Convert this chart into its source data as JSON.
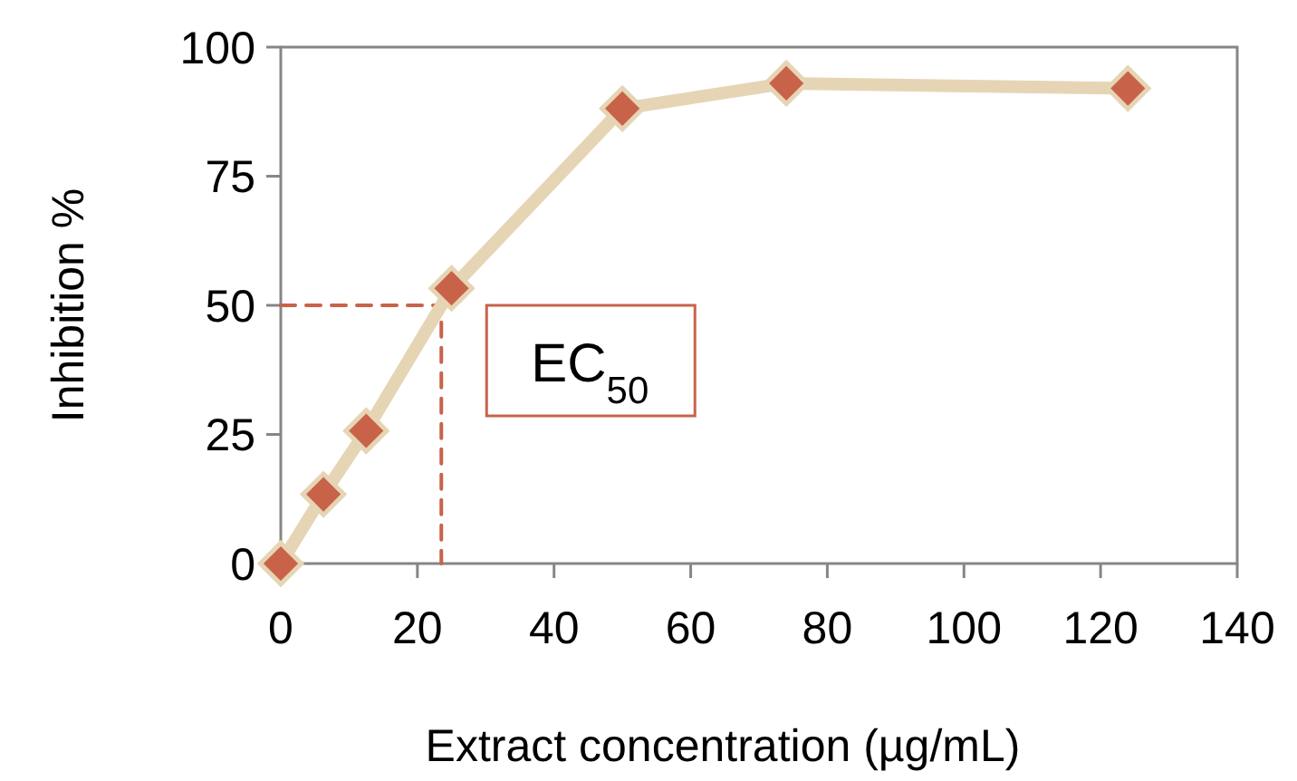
{
  "chart_data": {
    "type": "line",
    "xlabel": "Extract concentration (µg/mL)",
    "ylabel": "Inhibition %",
    "xlim": [
      0,
      140
    ],
    "xticks": [
      0,
      20,
      40,
      60,
      80,
      100,
      120,
      140
    ],
    "ylim": [
      0,
      100
    ],
    "yticks": [
      0,
      25,
      50,
      75,
      100
    ],
    "grid": false,
    "series": [
      {
        "color": "#e6d5b5",
        "marker": "diamond",
        "colors": [
          "#c8634a",
          "#c8634a",
          "#c8634a",
          "#c8634a",
          "#c8634a",
          "#c8634a",
          "#c8634a"
        ],
        "line_style": "solid",
        "x": [
          0,
          6.25,
          12.5,
          25,
          50,
          74,
          124
        ],
        "values": [
          0,
          13.4,
          25.7,
          53.3,
          88.1,
          93,
          92
        ]
      },
      {
        "color": "#c8634a",
        "marker": "none",
        "line_style": "dashed",
        "x": [
          0,
          23.5,
          23.5
        ],
        "values": [
          50,
          50,
          0
        ]
      }
    ],
    "annotations": [
      {
        "text": "EC$_{50}$",
        "x": 23.5,
        "y": 50
      }
    ]
  }
}
